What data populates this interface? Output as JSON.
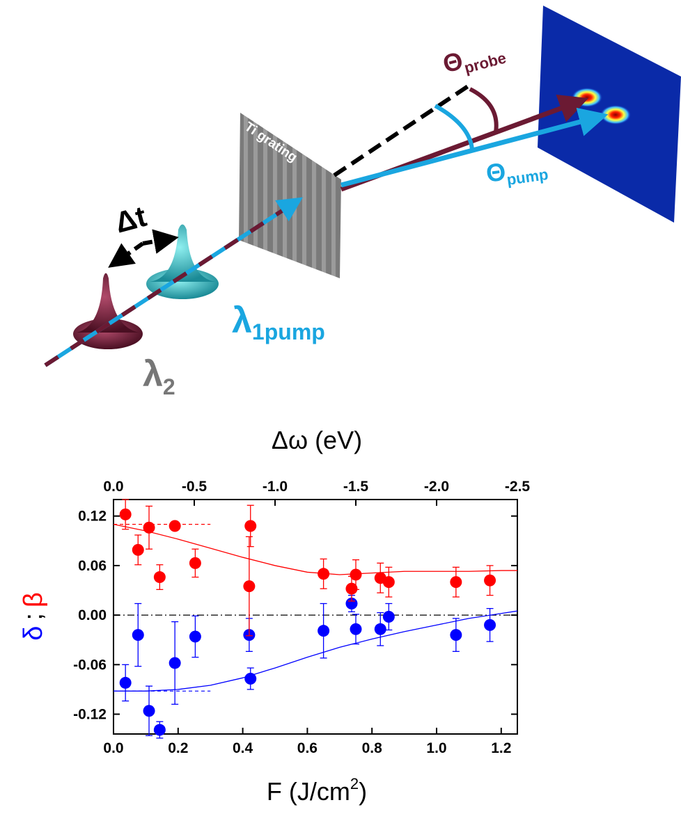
{
  "diagram": {
    "delta_t": "Δt",
    "grating": "Ti grating",
    "theta_probe": {
      "symbol": "Θ",
      "sub": "probe"
    },
    "theta_pump": {
      "symbol": "Θ",
      "sub": "pump"
    },
    "lambda_pump": {
      "symbol": "λ",
      "sub": "1pump"
    },
    "lambda_2": {
      "symbol": "λ",
      "sub": "2"
    }
  },
  "chart_data": {
    "type": "scatter",
    "xlabel": "F (J/cm",
    "xlabel_sup": "2",
    "xlabel_end": ")",
    "x2label": "Δω (eV)",
    "ylabel_separator": ";",
    "xlim": [
      0,
      1.25
    ],
    "xticks": [
      {
        "value": 0,
        "label": "0.0"
      },
      0.2,
      0.4,
      0.6,
      0.8,
      {
        "value": 1,
        "label": "1.0"
      },
      1.2
    ],
    "x2lim": [
      0,
      -2.5
    ],
    "x2ticks": [
      {
        "value": 0,
        "label": "0.0"
      },
      -0.5,
      {
        "value": -1,
        "label": "-1.0"
      },
      -1.5,
      {
        "value": -2,
        "label": "-2.0"
      },
      -2.5
    ],
    "ylim": [
      -0.144,
      0.14
    ],
    "yticks": [
      0.12,
      0.06,
      {
        "value": 0,
        "label": "0.00"
      },
      -0.06,
      -0.12
    ],
    "zero_line": 0,
    "series": [
      {
        "name": "δ",
        "color": "#0000ff",
        "x": [
          0.037,
          0.076,
          0.11,
          0.143,
          0.19,
          0.253,
          0.42,
          0.424,
          0.65,
          0.737,
          0.75,
          0.826,
          0.852,
          1.06,
          1.165
        ],
        "values": [
          -0.082,
          -0.024,
          -0.116,
          -0.139,
          -0.058,
          -0.026,
          -0.024,
          -0.077,
          -0.019,
          0.014,
          -0.017,
          -0.017,
          -0.002,
          -0.024,
          -0.012
        ],
        "errors": [
          0.022,
          0.038,
          0.03,
          0.01,
          0.05,
          0.025,
          0.02,
          0.013,
          0.033,
          0.01,
          0.018,
          0.02,
          0.016,
          0.02,
          0.02
        ]
      },
      {
        "name": "β",
        "color": "#ff0000",
        "x": [
          0.037,
          0.076,
          0.11,
          0.143,
          0.19,
          0.253,
          0.42,
          0.424,
          0.65,
          0.737,
          0.75,
          0.826,
          0.852,
          1.06,
          1.165
        ],
        "values": [
          0.122,
          0.079,
          0.106,
          0.046,
          0.108,
          0.063,
          0.035,
          0.108,
          0.05,
          0.032,
          0.049,
          0.045,
          0.04,
          0.04,
          0.042
        ],
        "errors": [
          0.018,
          0.018,
          0.026,
          0.015,
          0.004,
          0.017,
          0.06,
          0.025,
          0.018,
          0.015,
          0.018,
          0.018,
          0.018,
          0.018,
          0.018
        ]
      }
    ],
    "fits": [
      {
        "color": "#0000ff",
        "x": [
          0,
          0.1,
          0.2,
          0.3,
          0.4,
          0.5,
          0.6,
          0.7,
          0.8,
          0.9,
          1.0,
          1.1,
          1.2,
          1.25
        ],
        "values": [
          -0.092,
          -0.092,
          -0.09,
          -0.085,
          -0.076,
          -0.064,
          -0.051,
          -0.039,
          -0.029,
          -0.02,
          -0.012,
          -0.004,
          0.002,
          0.005
        ]
      },
      {
        "color": "#ff0000",
        "x": [
          0,
          0.1,
          0.2,
          0.3,
          0.4,
          0.5,
          0.6,
          0.7,
          0.8,
          0.9,
          1.0,
          1.1,
          1.2,
          1.25
        ],
        "values": [
          0.11,
          0.102,
          0.092,
          0.081,
          0.07,
          0.06,
          0.052,
          0.049,
          0.051,
          0.053,
          0.053,
          0.053,
          0.054,
          0.054
        ]
      }
    ],
    "reference_lines": [
      {
        "color": "#0000ff",
        "y": -0.092,
        "x": [
          0,
          0.3
        ]
      },
      {
        "color": "#ff0000",
        "y": 0.11,
        "x": [
          0,
          0.3
        ]
      }
    ]
  }
}
